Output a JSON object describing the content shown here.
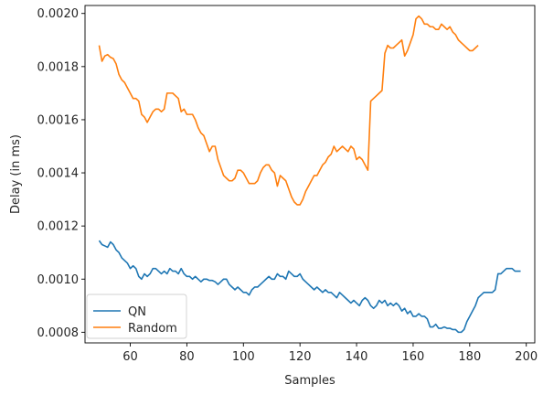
{
  "chart_data": {
    "type": "line",
    "title": "",
    "xlabel": "Samples",
    "ylabel": "Delay (in ms)",
    "xlim": [
      44,
      203
    ],
    "ylim": [
      0.00076,
      0.00203
    ],
    "x_ticks": [
      60,
      80,
      100,
      120,
      140,
      160,
      180,
      200
    ],
    "x_tick_labels": [
      "60",
      "80",
      "100",
      "120",
      "140",
      "160",
      "180",
      "200"
    ],
    "y_ticks": [
      0.0008,
      0.001,
      0.0012,
      0.0014,
      0.0016,
      0.0018,
      0.002
    ],
    "y_tick_labels": [
      "0.0008",
      "0.0010",
      "0.0012",
      "0.0014",
      "0.0016",
      "0.0018",
      "0.0020"
    ],
    "grid": false,
    "legend": {
      "position": "lower-left"
    },
    "series": [
      {
        "name": "QN",
        "color": "#1f77b4",
        "points": [
          [
            49,
            0.001145
          ],
          [
            50,
            0.00113
          ],
          [
            51,
            0.001125
          ],
          [
            52,
            0.00112
          ],
          [
            53,
            0.00114
          ],
          [
            54,
            0.00113
          ],
          [
            55,
            0.00111
          ],
          [
            56,
            0.0011
          ],
          [
            57,
            0.00108
          ],
          [
            58,
            0.00107
          ],
          [
            59,
            0.00106
          ],
          [
            60,
            0.00104
          ],
          [
            61,
            0.00105
          ],
          [
            62,
            0.00104
          ],
          [
            63,
            0.00101
          ],
          [
            64,
            0.001
          ],
          [
            65,
            0.00102
          ],
          [
            66,
            0.00101
          ],
          [
            67,
            0.00102
          ],
          [
            68,
            0.00104
          ],
          [
            69,
            0.00104
          ],
          [
            70,
            0.00103
          ],
          [
            71,
            0.00102
          ],
          [
            72,
            0.00103
          ],
          [
            73,
            0.00102
          ],
          [
            74,
            0.00104
          ],
          [
            75,
            0.00103
          ],
          [
            76,
            0.00103
          ],
          [
            77,
            0.00102
          ],
          [
            78,
            0.00104
          ],
          [
            79,
            0.00102
          ],
          [
            80,
            0.00101
          ],
          [
            81,
            0.00101
          ],
          [
            82,
            0.001
          ],
          [
            83,
            0.00101
          ],
          [
            84,
            0.001
          ],
          [
            85,
            0.00099
          ],
          [
            86,
            0.001
          ],
          [
            87,
            0.001
          ],
          [
            88,
            0.000995
          ],
          [
            89,
            0.000995
          ],
          [
            90,
            0.00099
          ],
          [
            91,
            0.00098
          ],
          [
            92,
            0.00099
          ],
          [
            93,
            0.001
          ],
          [
            94,
            0.001
          ],
          [
            95,
            0.00098
          ],
          [
            96,
            0.00097
          ],
          [
            97,
            0.00096
          ],
          [
            98,
            0.00097
          ],
          [
            99,
            0.00096
          ],
          [
            100,
            0.00095
          ],
          [
            101,
            0.00095
          ],
          [
            102,
            0.00094
          ],
          [
            103,
            0.00096
          ],
          [
            104,
            0.00097
          ],
          [
            105,
            0.00097
          ],
          [
            106,
            0.00098
          ],
          [
            107,
            0.00099
          ],
          [
            108,
            0.001
          ],
          [
            109,
            0.00101
          ],
          [
            110,
            0.001
          ],
          [
            111,
            0.001
          ],
          [
            112,
            0.00102
          ],
          [
            113,
            0.00101
          ],
          [
            114,
            0.00101
          ],
          [
            115,
            0.001
          ],
          [
            116,
            0.00103
          ],
          [
            117,
            0.00102
          ],
          [
            118,
            0.00101
          ],
          [
            119,
            0.00101
          ],
          [
            120,
            0.00102
          ],
          [
            121,
            0.001
          ],
          [
            122,
            0.00099
          ],
          [
            123,
            0.00098
          ],
          [
            124,
            0.00097
          ],
          [
            125,
            0.00096
          ],
          [
            126,
            0.00097
          ],
          [
            127,
            0.00096
          ],
          [
            128,
            0.00095
          ],
          [
            129,
            0.00096
          ],
          [
            130,
            0.00095
          ],
          [
            131,
            0.00095
          ],
          [
            132,
            0.00094
          ],
          [
            133,
            0.00093
          ],
          [
            134,
            0.00095
          ],
          [
            135,
            0.00094
          ],
          [
            136,
            0.00093
          ],
          [
            137,
            0.00092
          ],
          [
            138,
            0.00091
          ],
          [
            139,
            0.00092
          ],
          [
            140,
            0.00091
          ],
          [
            141,
            0.0009
          ],
          [
            142,
            0.00092
          ],
          [
            143,
            0.00093
          ],
          [
            144,
            0.00092
          ],
          [
            145,
            0.0009
          ],
          [
            146,
            0.00089
          ],
          [
            147,
            0.0009
          ],
          [
            148,
            0.00092
          ],
          [
            149,
            0.00091
          ],
          [
            150,
            0.00092
          ],
          [
            151,
            0.0009
          ],
          [
            152,
            0.00091
          ],
          [
            153,
            0.0009
          ],
          [
            154,
            0.00091
          ],
          [
            155,
            0.0009
          ],
          [
            156,
            0.00088
          ],
          [
            157,
            0.00089
          ],
          [
            158,
            0.00087
          ],
          [
            159,
            0.00088
          ],
          [
            160,
            0.00086
          ],
          [
            161,
            0.00086
          ],
          [
            162,
            0.00087
          ],
          [
            163,
            0.00086
          ],
          [
            164,
            0.00086
          ],
          [
            165,
            0.00085
          ],
          [
            166,
            0.00082
          ],
          [
            167,
            0.00082
          ],
          [
            168,
            0.00083
          ],
          [
            169,
            0.000815
          ],
          [
            170,
            0.000815
          ],
          [
            171,
            0.00082
          ],
          [
            172,
            0.000815
          ],
          [
            173,
            0.000815
          ],
          [
            174,
            0.00081
          ],
          [
            175,
            0.00081
          ],
          [
            176,
            0.0008
          ],
          [
            177,
            0.0008
          ],
          [
            178,
            0.00081
          ],
          [
            179,
            0.00084
          ],
          [
            180,
            0.00086
          ],
          [
            181,
            0.00088
          ],
          [
            182,
            0.0009
          ],
          [
            183,
            0.00093
          ],
          [
            184,
            0.00094
          ],
          [
            185,
            0.00095
          ],
          [
            186,
            0.00095
          ],
          [
            187,
            0.00095
          ],
          [
            188,
            0.00095
          ],
          [
            189,
            0.00096
          ],
          [
            190,
            0.00102
          ],
          [
            191,
            0.00102
          ],
          [
            192,
            0.00103
          ],
          [
            193,
            0.00104
          ],
          [
            194,
            0.00104
          ],
          [
            195,
            0.00104
          ],
          [
            196,
            0.00103
          ],
          [
            197,
            0.00103
          ],
          [
            198,
            0.00103
          ]
        ]
      },
      {
        "name": "Random",
        "color": "#ff7f0e",
        "points": [
          [
            49,
            0.00188
          ],
          [
            50,
            0.00182
          ],
          [
            51,
            0.00184
          ],
          [
            52,
            0.001845
          ],
          [
            53,
            0.001835
          ],
          [
            54,
            0.00183
          ],
          [
            55,
            0.00181
          ],
          [
            56,
            0.00177
          ],
          [
            57,
            0.00175
          ],
          [
            58,
            0.00174
          ],
          [
            59,
            0.00172
          ],
          [
            60,
            0.0017
          ],
          [
            61,
            0.00168
          ],
          [
            62,
            0.00168
          ],
          [
            63,
            0.00167
          ],
          [
            64,
            0.00162
          ],
          [
            65,
            0.00161
          ],
          [
            66,
            0.00159
          ],
          [
            67,
            0.00161
          ],
          [
            68,
            0.00163
          ],
          [
            69,
            0.00164
          ],
          [
            70,
            0.00164
          ],
          [
            71,
            0.00163
          ],
          [
            72,
            0.00164
          ],
          [
            73,
            0.0017
          ],
          [
            74,
            0.0017
          ],
          [
            75,
            0.0017
          ],
          [
            76,
            0.00169
          ],
          [
            77,
            0.00168
          ],
          [
            78,
            0.00163
          ],
          [
            79,
            0.00164
          ],
          [
            80,
            0.00162
          ],
          [
            81,
            0.00162
          ],
          [
            82,
            0.00162
          ],
          [
            83,
            0.0016
          ],
          [
            84,
            0.00157
          ],
          [
            85,
            0.00155
          ],
          [
            86,
            0.00154
          ],
          [
            87,
            0.00151
          ],
          [
            88,
            0.00148
          ],
          [
            89,
            0.0015
          ],
          [
            90,
            0.0015
          ],
          [
            91,
            0.00145
          ],
          [
            92,
            0.00142
          ],
          [
            93,
            0.00139
          ],
          [
            94,
            0.00138
          ],
          [
            95,
            0.00137
          ],
          [
            96,
            0.00137
          ],
          [
            97,
            0.00138
          ],
          [
            98,
            0.00141
          ],
          [
            99,
            0.00141
          ],
          [
            100,
            0.0014
          ],
          [
            101,
            0.00138
          ],
          [
            102,
            0.00136
          ],
          [
            103,
            0.00136
          ],
          [
            104,
            0.00136
          ],
          [
            105,
            0.00137
          ],
          [
            106,
            0.0014
          ],
          [
            107,
            0.00142
          ],
          [
            108,
            0.00143
          ],
          [
            109,
            0.00143
          ],
          [
            110,
            0.00141
          ],
          [
            111,
            0.0014
          ],
          [
            112,
            0.00135
          ],
          [
            113,
            0.00139
          ],
          [
            114,
            0.00138
          ],
          [
            115,
            0.00137
          ],
          [
            116,
            0.00134
          ],
          [
            117,
            0.00131
          ],
          [
            118,
            0.00129
          ],
          [
            119,
            0.00128
          ],
          [
            120,
            0.00128
          ],
          [
            121,
            0.0013
          ],
          [
            122,
            0.00133
          ],
          [
            123,
            0.00135
          ],
          [
            124,
            0.00137
          ],
          [
            125,
            0.00139
          ],
          [
            126,
            0.00139
          ],
          [
            127,
            0.00141
          ],
          [
            128,
            0.00143
          ],
          [
            129,
            0.00144
          ],
          [
            130,
            0.00146
          ],
          [
            131,
            0.00147
          ],
          [
            132,
            0.0015
          ],
          [
            133,
            0.00148
          ],
          [
            134,
            0.00149
          ],
          [
            135,
            0.0015
          ],
          [
            136,
            0.00149
          ],
          [
            137,
            0.00148
          ],
          [
            138,
            0.0015
          ],
          [
            139,
            0.00149
          ],
          [
            140,
            0.00145
          ],
          [
            141,
            0.00146
          ],
          [
            142,
            0.00145
          ],
          [
            143,
            0.00143
          ],
          [
            144,
            0.00141
          ],
          [
            145,
            0.00167
          ],
          [
            146,
            0.00168
          ],
          [
            147,
            0.00169
          ],
          [
            148,
            0.0017
          ],
          [
            149,
            0.00171
          ],
          [
            150,
            0.00185
          ],
          [
            151,
            0.00188
          ],
          [
            152,
            0.00187
          ],
          [
            153,
            0.00187
          ],
          [
            154,
            0.00188
          ],
          [
            155,
            0.00189
          ],
          [
            156,
            0.0019
          ],
          [
            157,
            0.00184
          ],
          [
            158,
            0.00186
          ],
          [
            159,
            0.00189
          ],
          [
            160,
            0.00192
          ],
          [
            161,
            0.00198
          ],
          [
            162,
            0.00199
          ],
          [
            163,
            0.00198
          ],
          [
            164,
            0.00196
          ],
          [
            165,
            0.00196
          ],
          [
            166,
            0.00195
          ],
          [
            167,
            0.00195
          ],
          [
            168,
            0.00194
          ],
          [
            169,
            0.00194
          ],
          [
            170,
            0.00196
          ],
          [
            171,
            0.00195
          ],
          [
            172,
            0.00194
          ],
          [
            173,
            0.00195
          ],
          [
            174,
            0.00193
          ],
          [
            175,
            0.00192
          ],
          [
            176,
            0.0019
          ],
          [
            177,
            0.00189
          ],
          [
            178,
            0.00188
          ],
          [
            179,
            0.00187
          ],
          [
            180,
            0.00186
          ],
          [
            181,
            0.00186
          ],
          [
            182,
            0.00187
          ],
          [
            183,
            0.00188
          ]
        ]
      }
    ]
  }
}
